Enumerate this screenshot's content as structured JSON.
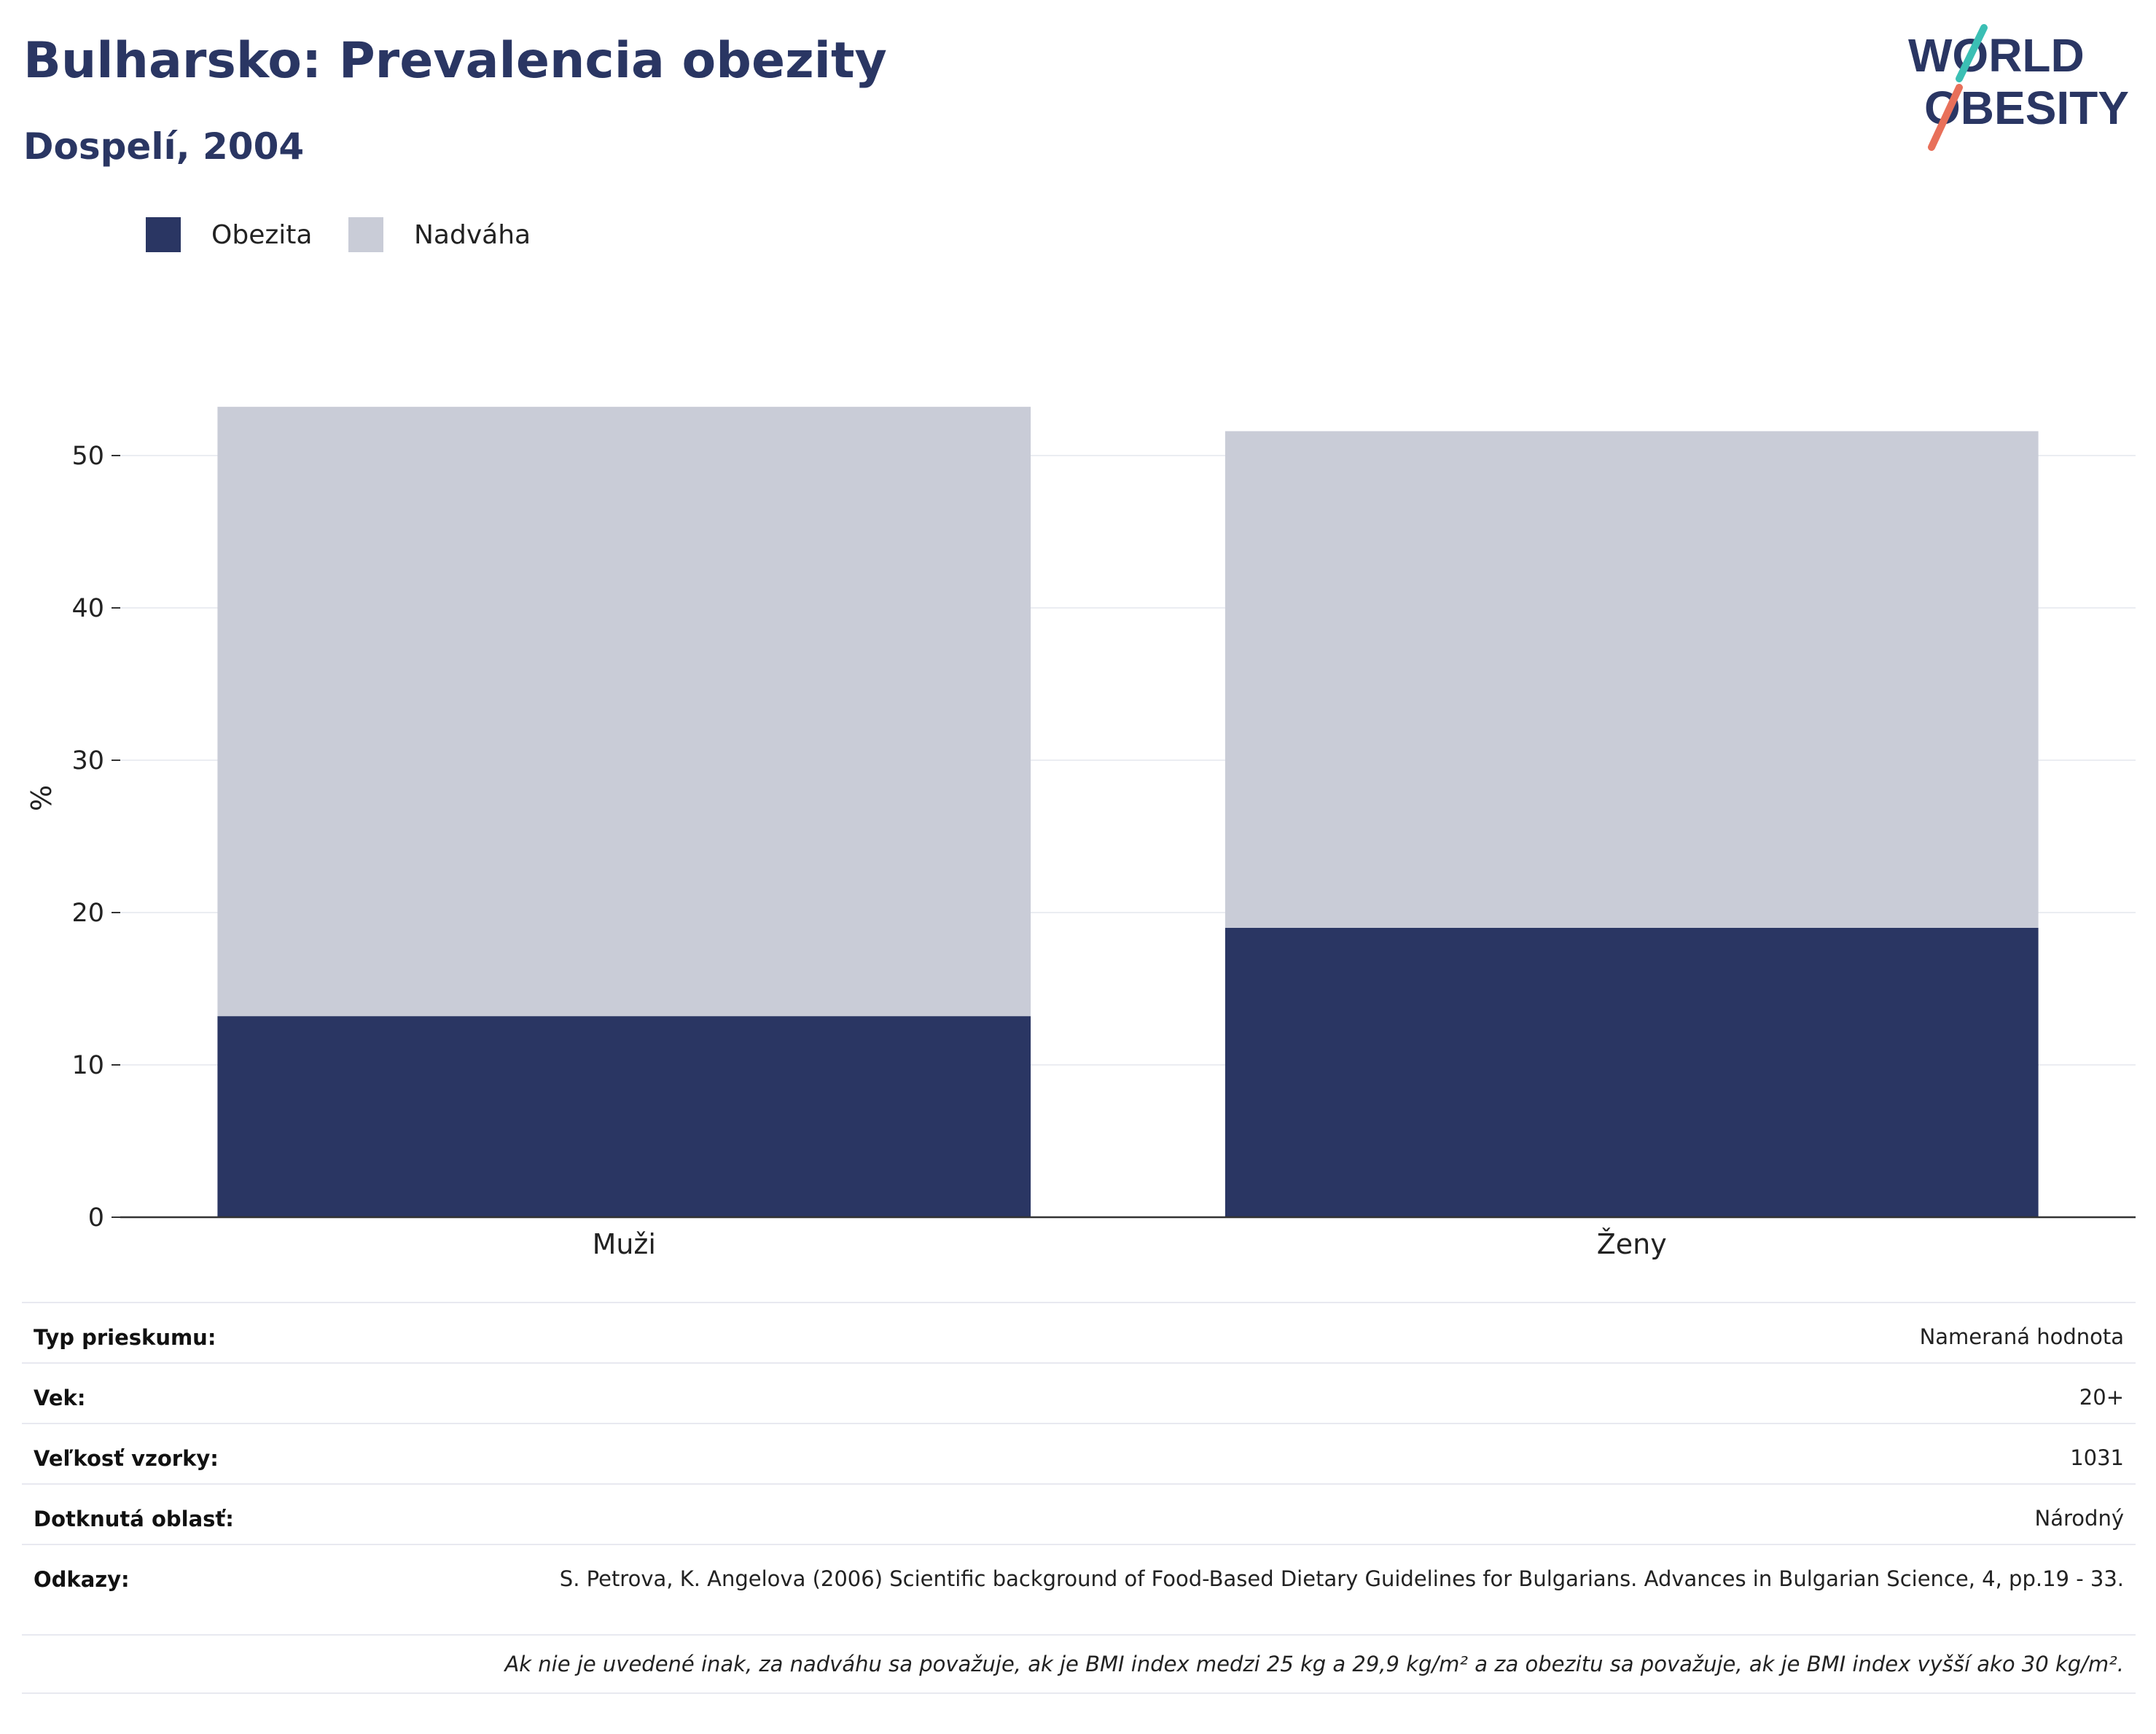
{
  "header": {
    "title": "Bulharsko: Prevalencia obezity",
    "subtitle": "Dospelí, 2004"
  },
  "logo": {
    "line1": "WORLD",
    "line2": "OBESITY",
    "colors": {
      "text": "#2a3663",
      "slash_top": "#3bbfb4",
      "slash_bottom": "#e8705a"
    }
  },
  "legend": [
    {
      "label": "Obezita",
      "color": "#2a3663"
    },
    {
      "label": "Nadváha",
      "color": "#c9ccd7"
    }
  ],
  "chart_data": {
    "type": "bar",
    "stacked": true,
    "categories": [
      "Muži",
      "Ženy"
    ],
    "series": [
      {
        "name": "Obezita",
        "values": [
          13.2,
          19.0
        ],
        "color": "#2a3663"
      },
      {
        "name": "Nadváha",
        "values": [
          40.0,
          32.6
        ],
        "color": "#c9ccd7"
      }
    ],
    "ylabel": "%",
    "ylim": [
      0,
      55
    ],
    "yticks": [
      0,
      10,
      20,
      30,
      40,
      50
    ],
    "grid": true,
    "legend_position": "top-left"
  },
  "info": {
    "survey_type": {
      "key": "Typ prieskumu:",
      "value": "Nameraná hodnota"
    },
    "age": {
      "key": "Vek:",
      "value": "20+"
    },
    "sample_size": {
      "key": "Veľkosť vzorky:",
      "value": "1031"
    },
    "area": {
      "key": "Dotknutá oblasť:",
      "value": "Národný"
    },
    "references": {
      "key": "Odkazy:",
      "value": "S. Petrova, K. Angelova (2006) Scientific background of Food-Based Dietary Guidelines for Bulgarians. Advances in Bulgarian Science, 4, pp.19 - 33."
    },
    "footnote": "Ak nie je uvedené inak, za nadváhu sa považuje, ak je BMI index medzi 25 kg a 29,9 kg/m² a za obezitu sa považuje, ak je BMI index vyšší ako 30 kg/m²."
  }
}
